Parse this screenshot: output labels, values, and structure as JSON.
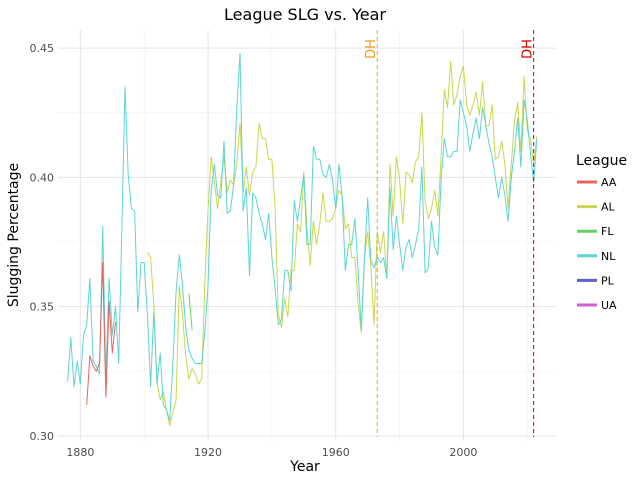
{
  "chart_data": {
    "type": "line",
    "title": "League SLG vs. Year",
    "xlabel": "Year",
    "ylabel": "Slugging Percentage",
    "xlim": [
      1873,
      2029
    ],
    "ylim": [
      0.298,
      0.457
    ],
    "x_ticks": [
      1880,
      1920,
      1960,
      2000
    ],
    "y_ticks": [
      0.3,
      0.35,
      0.4,
      0.45
    ],
    "y_tick_labels": [
      "0.30",
      "0.35",
      "0.40",
      "0.45"
    ],
    "grid": true,
    "legend": {
      "title": "League",
      "position": "right"
    },
    "series": [
      {
        "name": "AA",
        "color": "#E2665F",
        "x": [
          1882,
          1883,
          1884,
          1885,
          1886,
          1887,
          1888,
          1889,
          1890,
          1891
        ],
        "y": [
          0.312,
          0.331,
          0.327,
          0.325,
          0.328,
          0.367,
          0.315,
          0.352,
          0.332,
          0.344
        ]
      },
      {
        "name": "AL",
        "color": "#C8D74D",
        "x": [
          1901,
          1902,
          1903,
          1904,
          1905,
          1906,
          1907,
          1908,
          1909,
          1910,
          1911,
          1912,
          1913,
          1914,
          1915,
          1916,
          1917,
          1918,
          1919,
          1920,
          1921,
          1922,
          1923,
          1924,
          1925,
          1926,
          1927,
          1928,
          1929,
          1930,
          1931,
          1932,
          1933,
          1934,
          1935,
          1936,
          1937,
          1938,
          1939,
          1940,
          1941,
          1942,
          1943,
          1944,
          1945,
          1946,
          1947,
          1948,
          1949,
          1950,
          1951,
          1952,
          1953,
          1954,
          1955,
          1956,
          1957,
          1958,
          1959,
          1960,
          1961,
          1962,
          1963,
          1964,
          1965,
          1966,
          1967,
          1968,
          1969,
          1970,
          1971,
          1972,
          1973,
          1974,
          1975,
          1976,
          1977,
          1978,
          1979,
          1980,
          1981,
          1982,
          1983,
          1984,
          1985,
          1986,
          1987,
          1988,
          1989,
          1990,
          1991,
          1992,
          1993,
          1994,
          1995,
          1996,
          1997,
          1998,
          1999,
          2000,
          2001,
          2002,
          2003,
          2004,
          2005,
          2006,
          2007,
          2008,
          2009,
          2010,
          2011,
          2012,
          2013,
          2014,
          2015,
          2016,
          2017,
          2018,
          2019,
          2020,
          2021,
          2022,
          2023
        ],
        "y": [
          0.371,
          0.369,
          0.351,
          0.321,
          0.314,
          0.317,
          0.31,
          0.304,
          0.309,
          0.314,
          0.358,
          0.347,
          0.331,
          0.322,
          0.326,
          0.324,
          0.32,
          0.322,
          0.359,
          0.387,
          0.408,
          0.398,
          0.388,
          0.398,
          0.408,
          0.394,
          0.399,
          0.397,
          0.405,
          0.421,
          0.394,
          0.404,
          0.393,
          0.402,
          0.404,
          0.421,
          0.415,
          0.415,
          0.407,
          0.407,
          0.388,
          0.347,
          0.342,
          0.353,
          0.346,
          0.364,
          0.364,
          0.382,
          0.379,
          0.402,
          0.38,
          0.366,
          0.383,
          0.374,
          0.382,
          0.394,
          0.383,
          0.383,
          0.384,
          0.388,
          0.395,
          0.393,
          0.38,
          0.382,
          0.369,
          0.369,
          0.351,
          0.34,
          0.369,
          0.379,
          0.366,
          0.343,
          0.379,
          0.371,
          0.379,
          0.361,
          0.405,
          0.385,
          0.408,
          0.399,
          0.382,
          0.402,
          0.401,
          0.398,
          0.406,
          0.408,
          0.425,
          0.391,
          0.384,
          0.388,
          0.395,
          0.385,
          0.408,
          0.434,
          0.427,
          0.445,
          0.428,
          0.432,
          0.439,
          0.443,
          0.428,
          0.424,
          0.428,
          0.433,
          0.424,
          0.437,
          0.42,
          0.42,
          0.428,
          0.407,
          0.408,
          0.414,
          0.405,
          0.388,
          0.405,
          0.422,
          0.429,
          0.41,
          0.439,
          0.418,
          0.415,
          0.405,
          0.416
        ]
      },
      {
        "name": "FL",
        "color": "#62D262",
        "x": [
          1914,
          1915
        ],
        "y": [
          0.355,
          0.341
        ]
      },
      {
        "name": "NL",
        "color": "#5CD4D4",
        "x": [
          1876,
          1877,
          1878,
          1879,
          1880,
          1881,
          1882,
          1883,
          1884,
          1885,
          1886,
          1887,
          1888,
          1889,
          1890,
          1891,
          1892,
          1893,
          1894,
          1895,
          1896,
          1897,
          1898,
          1899,
          1900,
          1901,
          1902,
          1903,
          1904,
          1905,
          1906,
          1907,
          1908,
          1909,
          1910,
          1911,
          1912,
          1913,
          1914,
          1915,
          1916,
          1917,
          1918,
          1919,
          1920,
          1921,
          1922,
          1923,
          1924,
          1925,
          1926,
          1927,
          1928,
          1929,
          1930,
          1931,
          1932,
          1933,
          1934,
          1935,
          1936,
          1937,
          1938,
          1939,
          1940,
          1941,
          1942,
          1943,
          1944,
          1945,
          1946,
          1947,
          1948,
          1949,
          1950,
          1951,
          1952,
          1953,
          1954,
          1955,
          1956,
          1957,
          1958,
          1959,
          1960,
          1961,
          1962,
          1963,
          1964,
          1965,
          1966,
          1967,
          1968,
          1969,
          1970,
          1971,
          1972,
          1973,
          1974,
          1975,
          1976,
          1977,
          1978,
          1979,
          1980,
          1981,
          1982,
          1983,
          1984,
          1985,
          1986,
          1987,
          1988,
          1989,
          1990,
          1991,
          1992,
          1993,
          1994,
          1995,
          1996,
          1997,
          1998,
          1999,
          2000,
          2001,
          2002,
          2003,
          2004,
          2005,
          2006,
          2007,
          2008,
          2009,
          2010,
          2011,
          2012,
          2013,
          2014,
          2015,
          2016,
          2017,
          2018,
          2019,
          2020,
          2021,
          2022,
          2023
        ],
        "y": [
          0.321,
          0.338,
          0.319,
          0.329,
          0.32,
          0.339,
          0.343,
          0.361,
          0.329,
          0.327,
          0.324,
          0.381,
          0.323,
          0.361,
          0.339,
          0.35,
          0.328,
          0.379,
          0.435,
          0.401,
          0.388,
          0.387,
          0.348,
          0.367,
          0.367,
          0.347,
          0.319,
          0.348,
          0.32,
          0.332,
          0.312,
          0.31,
          0.306,
          0.328,
          0.356,
          0.37,
          0.358,
          0.342,
          0.333,
          0.33,
          0.328,
          0.328,
          0.328,
          0.34,
          0.358,
          0.395,
          0.405,
          0.393,
          0.392,
          0.414,
          0.386,
          0.387,
          0.397,
          0.427,
          0.448,
          0.387,
          0.396,
          0.362,
          0.394,
          0.392,
          0.386,
          0.382,
          0.376,
          0.386,
          0.369,
          0.357,
          0.343,
          0.345,
          0.364,
          0.364,
          0.356,
          0.391,
          0.383,
          0.392,
          0.401,
          0.374,
          0.374,
          0.412,
          0.407,
          0.407,
          0.401,
          0.4,
          0.405,
          0.399,
          0.388,
          0.405,
          0.393,
          0.364,
          0.374,
          0.374,
          0.384,
          0.364,
          0.341,
          0.369,
          0.392,
          0.368,
          0.365,
          0.369,
          0.367,
          0.369,
          0.361,
          0.396,
          0.372,
          0.385,
          0.374,
          0.364,
          0.373,
          0.376,
          0.369,
          0.374,
          0.38,
          0.404,
          0.363,
          0.365,
          0.383,
          0.373,
          0.37,
          0.399,
          0.415,
          0.408,
          0.408,
          0.41,
          0.41,
          0.43,
          0.425,
          0.42,
          0.41,
          0.417,
          0.423,
          0.415,
          0.427,
          0.42,
          0.413,
          0.408,
          0.4,
          0.392,
          0.4,
          0.393,
          0.383,
          0.4,
          0.41,
          0.423,
          0.404,
          0.43,
          0.422,
          0.409,
          0.398,
          0.415
        ]
      },
      {
        "name": "PL",
        "color": "#5F5FD2",
        "x": [],
        "y": []
      },
      {
        "name": "UA",
        "color": "#D35FD3",
        "x": [],
        "y": []
      }
    ],
    "vlines": [
      {
        "x": 1973,
        "label": "DH",
        "color": "#E6A31E"
      },
      {
        "x": 2022,
        "label": "DH",
        "color": "#D20000"
      }
    ]
  }
}
